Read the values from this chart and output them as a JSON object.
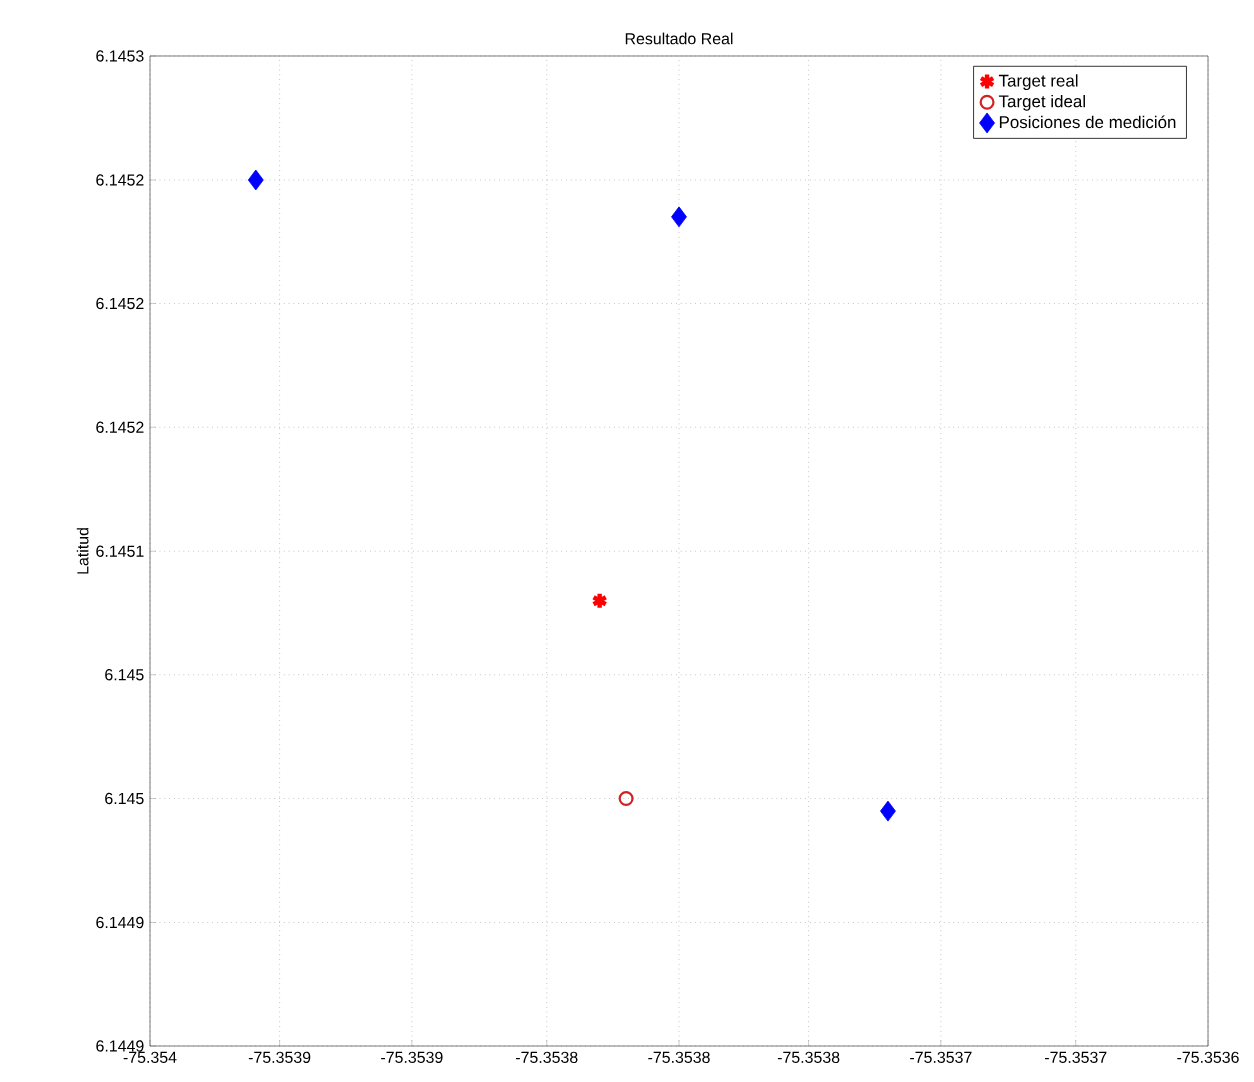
{
  "chart_data": {
    "type": "scatter",
    "title": "Resultado Real",
    "ylabel": "Latitud",
    "xlim": [
      -75.354,
      -75.3536
    ],
    "ylim": [
      6.1449,
      6.1453
    ],
    "xticks": [
      {
        "value": -75.354,
        "label": "-75.354"
      },
      {
        "value": -75.35395,
        "label": "-75.3539"
      },
      {
        "value": -75.3539,
        "label": "-75.3539"
      },
      {
        "value": -75.35385,
        "label": "-75.3538"
      },
      {
        "value": -75.3538,
        "label": "-75.3538"
      },
      {
        "value": -75.35375,
        "label": "-75.3538"
      },
      {
        "value": -75.3537,
        "label": "-75.3537"
      },
      {
        "value": -75.35365,
        "label": "-75.3537"
      },
      {
        "value": -75.3536,
        "label": "-75.3536"
      }
    ],
    "yticks": [
      {
        "value": 6.1449,
        "label": "6.1449"
      },
      {
        "value": 6.14495,
        "label": "6.1449"
      },
      {
        "value": 6.145,
        "label": "6.145"
      },
      {
        "value": 6.14505,
        "label": "6.145"
      },
      {
        "value": 6.1451,
        "label": "6.1451"
      },
      {
        "value": 6.14515,
        "label": "6.1452"
      },
      {
        "value": 6.1452,
        "label": "6.1452"
      },
      {
        "value": 6.14525,
        "label": "6.1452"
      },
      {
        "value": 6.1453,
        "label": "6.1453"
      }
    ],
    "grid": true,
    "legend": "top right",
    "line_style": "dotted",
    "series": [
      {
        "name": "Target real",
        "color": "#ff0000",
        "marker": "cross",
        "x": [
          -75.35383
        ],
        "values": [
          6.14508
        ]
      },
      {
        "name": "Target ideal",
        "color": "#d42020",
        "marker": "circle",
        "x": [
          -75.35382
        ],
        "values": [
          6.145
        ]
      },
      {
        "name": "Posiciones de medición",
        "color": "#0000ff",
        "marker": "diamond",
        "x": [
          -75.35396,
          -75.3538,
          -75.35372
        ],
        "values": [
          6.14525,
          6.145235,
          6.144995
        ]
      }
    ]
  }
}
